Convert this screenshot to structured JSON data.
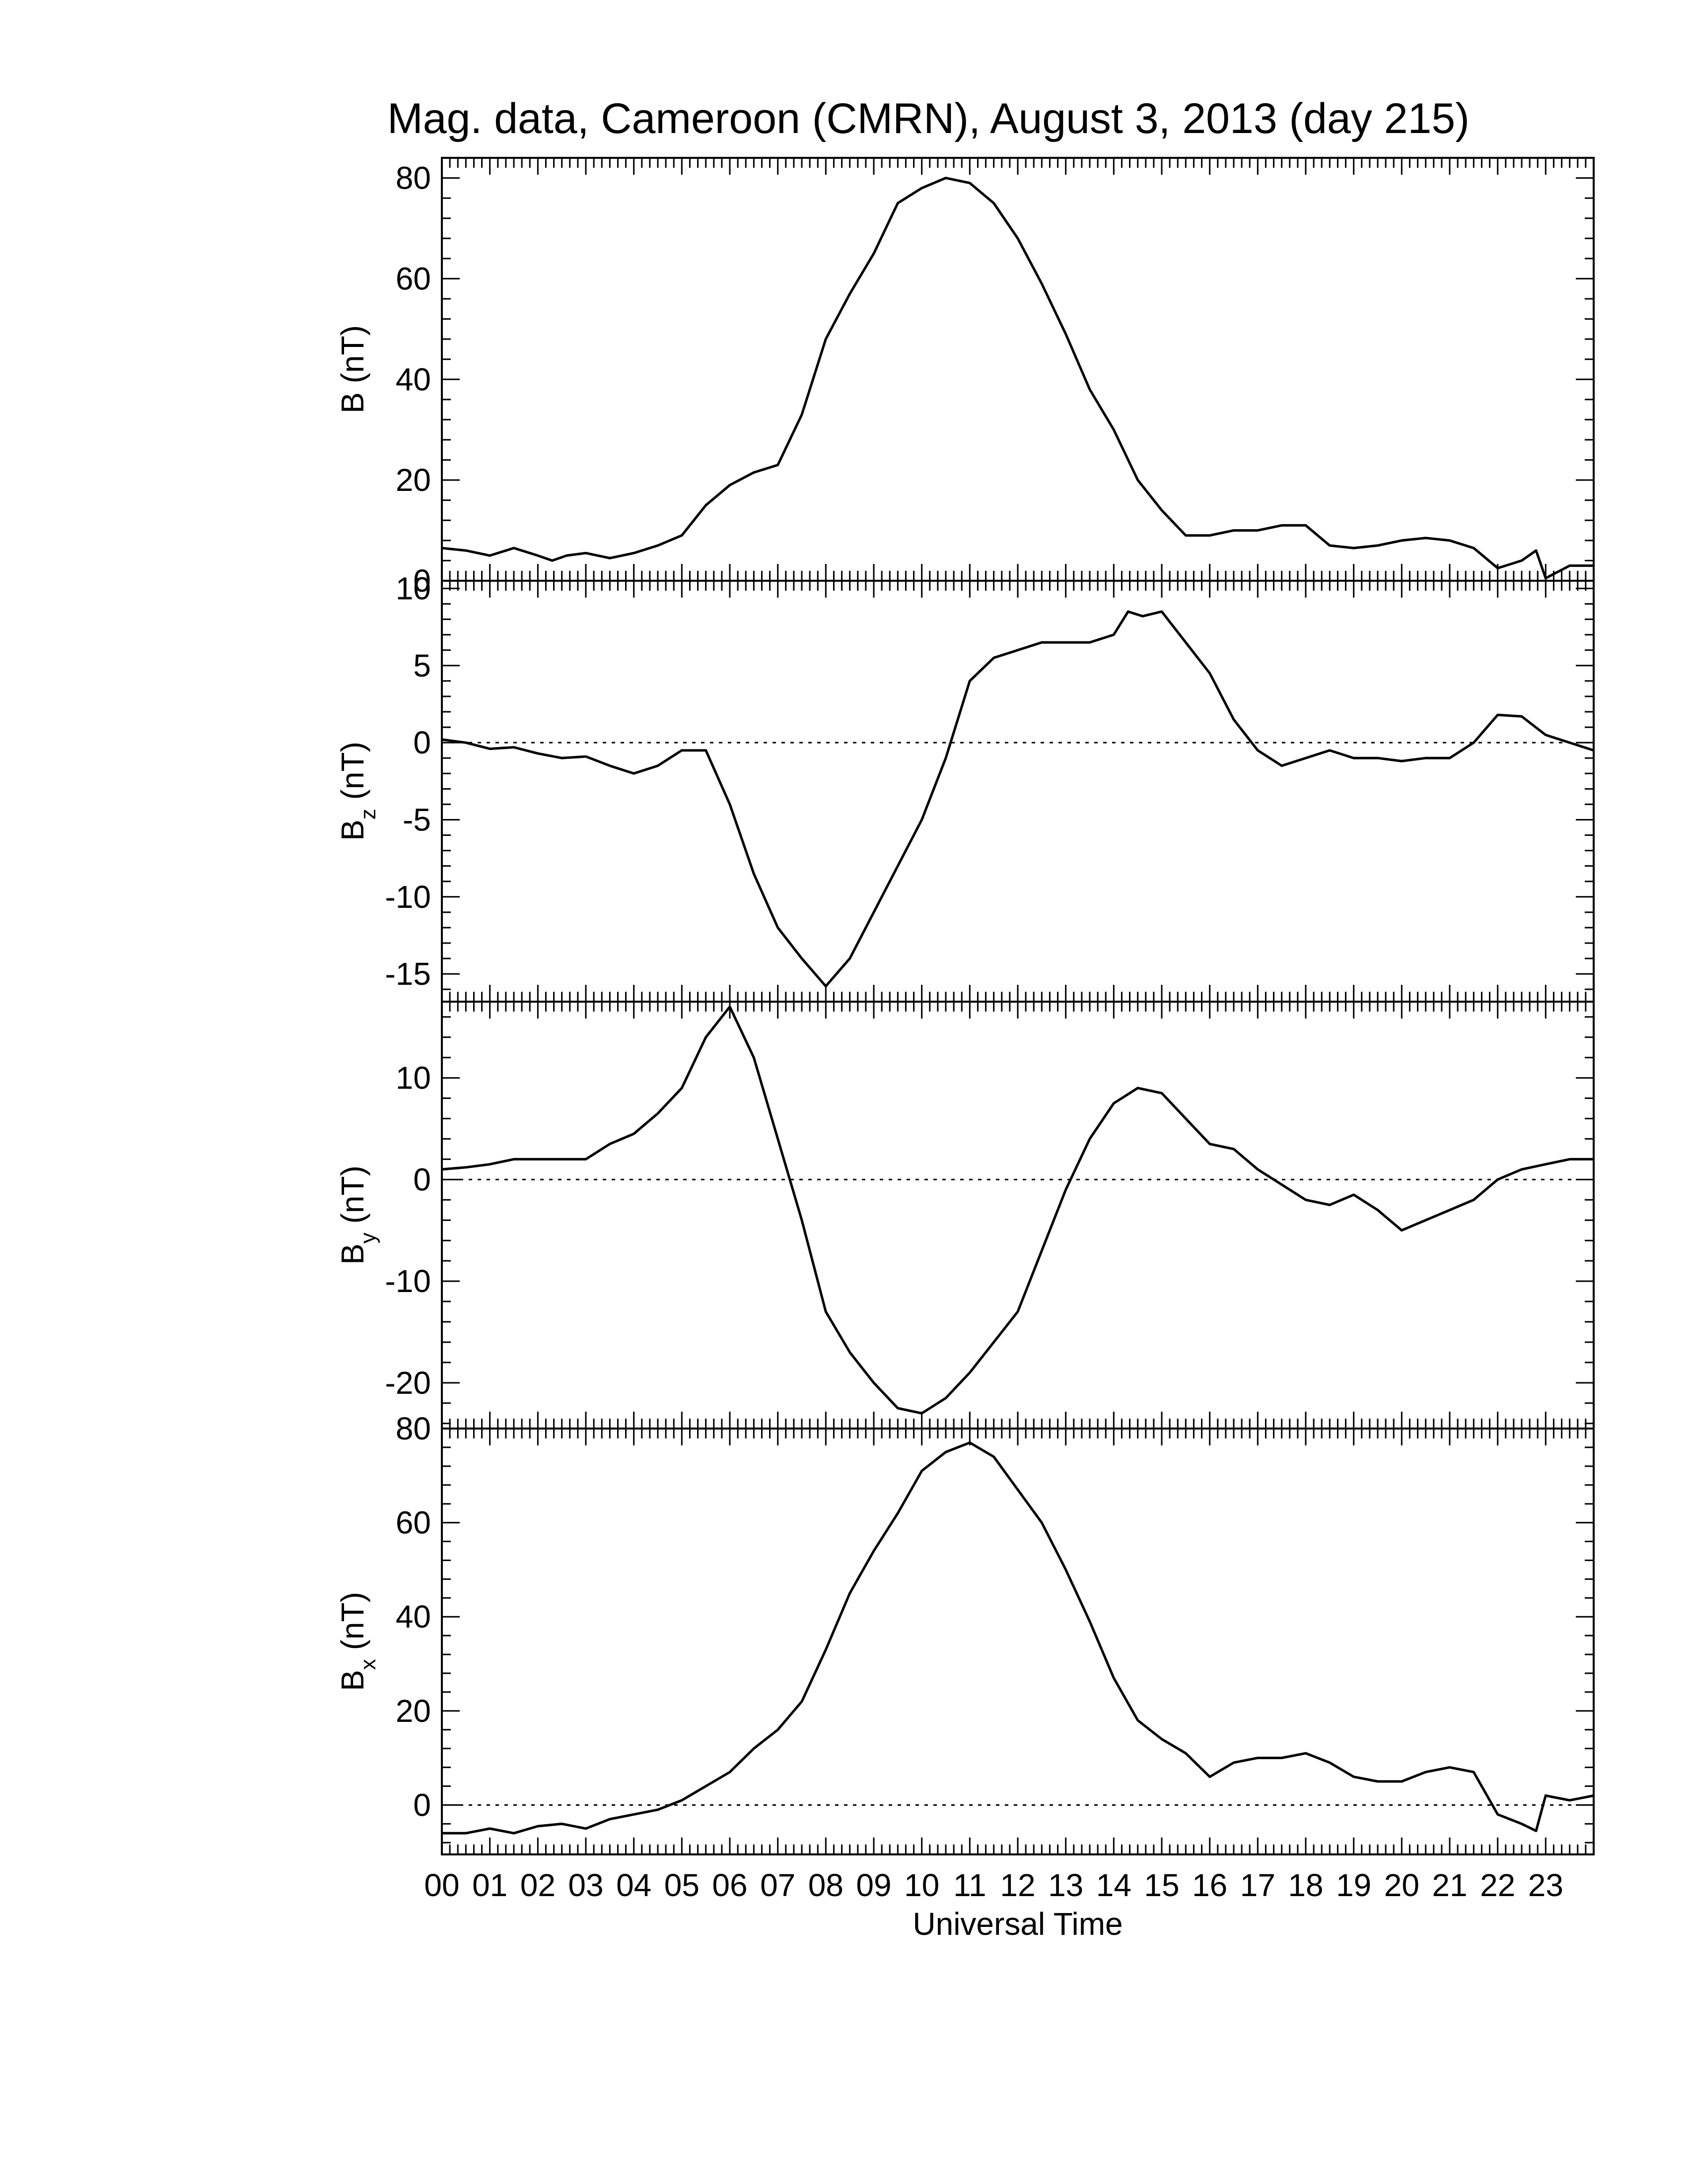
{
  "chart_data": {
    "type": "line",
    "title": "Mag. data, Cameroon (CMRN), August 3, 2013 (day 215)",
    "xlabel": "Universal Time",
    "x_tick_labels": [
      "00",
      "01",
      "02",
      "03",
      "04",
      "05",
      "06",
      "07",
      "08",
      "09",
      "10",
      "11",
      "12",
      "13",
      "14",
      "15",
      "16",
      "17",
      "18",
      "19",
      "20",
      "21",
      "22",
      "23"
    ],
    "xlim": [
      0,
      24
    ],
    "grid": false,
    "zero_line": "dotted",
    "panels": [
      {
        "ylabel_main": "B (nT)",
        "ylabel_sub": "",
        "ylim": [
          0,
          84
        ],
        "yticks": [
          0,
          20,
          40,
          60,
          80
        ],
        "x": [
          0,
          0.5,
          1,
          1.5,
          2,
          2.3,
          2.6,
          3,
          3.5,
          4,
          4.5,
          5,
          5.5,
          6,
          6.5,
          7,
          7.5,
          8,
          8.5,
          9,
          9.5,
          10,
          10.5,
          11,
          11.5,
          12,
          12.5,
          13,
          13.5,
          14,
          14.5,
          15,
          15.5,
          16,
          16.5,
          17,
          17.5,
          18,
          18.5,
          19,
          19.5,
          20,
          20.5,
          21,
          21.5,
          22,
          22.5,
          22.8,
          23,
          23.5,
          24
        ],
        "y": [
          6.5,
          6,
          5,
          6.5,
          5,
          4,
          5,
          5.5,
          4.5,
          5.5,
          7,
          9,
          15,
          19,
          21.5,
          23,
          33,
          48,
          57,
          65,
          75,
          78,
          80,
          79,
          75,
          68,
          59,
          49,
          38,
          30,
          20,
          14,
          9,
          9,
          10,
          10,
          11,
          11,
          7,
          6.5,
          7,
          8,
          8.5,
          8,
          6.5,
          2.5,
          4,
          6,
          0.5,
          3,
          3
        ]
      },
      {
        "ylabel_main": "B",
        "ylabel_sub": "z",
        "ylim": [
          -16.8,
          10.5
        ],
        "yticks": [
          -15,
          -10,
          -5,
          0,
          5,
          10
        ],
        "x": [
          0,
          0.5,
          1,
          1.5,
          2,
          2.5,
          3,
          3.5,
          4,
          4.5,
          5,
          5.5,
          6,
          6.5,
          7,
          7.5,
          8,
          8.5,
          9,
          9.5,
          10,
          10.5,
          11,
          11.5,
          12,
          12.5,
          13,
          13.5,
          14,
          14.3,
          14.6,
          15,
          15.5,
          16,
          16.5,
          17,
          17.5,
          18,
          18.5,
          19,
          19.5,
          20,
          20.5,
          21,
          21.5,
          22,
          22.5,
          23,
          23.5,
          24
        ],
        "y": [
          0.2,
          0,
          -0.4,
          -0.3,
          -0.7,
          -1,
          -0.9,
          -1.5,
          -2,
          -1.5,
          -0.5,
          -0.5,
          -4,
          -8.5,
          -12,
          -14,
          -15.8,
          -14,
          -11,
          -8,
          -5,
          -1,
          4,
          5.5,
          6,
          6.5,
          6.5,
          6.5,
          7,
          8.5,
          8.2,
          8.5,
          6.5,
          4.5,
          1.5,
          -0.5,
          -1.5,
          -1,
          -0.5,
          -1,
          -1,
          -1.2,
          -1,
          -1,
          0,
          1.8,
          1.7,
          0.5,
          0,
          -0.5
        ]
      },
      {
        "ylabel_main": "B",
        "ylabel_sub": "y",
        "ylim": [
          -24.5,
          17.5
        ],
        "yticks": [
          -20,
          -10,
          0,
          10
        ],
        "x": [
          0,
          0.5,
          1,
          1.5,
          2,
          2.5,
          3,
          3.5,
          4,
          4.5,
          5,
          5.5,
          6,
          6.5,
          7,
          7.5,
          8,
          8.5,
          9,
          9.5,
          10,
          10.5,
          11,
          11.5,
          12,
          12.5,
          13,
          13.5,
          14,
          14.5,
          15,
          15.5,
          16,
          16.5,
          17,
          17.5,
          18,
          18.5,
          19,
          19.5,
          20,
          20.5,
          21,
          21.5,
          22,
          22.5,
          23,
          23.5,
          24
        ],
        "y": [
          1,
          1.2,
          1.5,
          2,
          2,
          2,
          2,
          3.5,
          4.5,
          6.5,
          9,
          14,
          17,
          12,
          4,
          -4,
          -13,
          -17,
          -20,
          -22.5,
          -23,
          -21.5,
          -19,
          -16,
          -13,
          -7,
          -1,
          4,
          7.5,
          9,
          8.5,
          6,
          3.5,
          3,
          1,
          -0.5,
          -2,
          -2.5,
          -1.5,
          -3,
          -5,
          -4,
          -3,
          -2,
          0,
          1,
          1.5,
          2,
          2
        ]
      },
      {
        "ylabel_main": "B",
        "ylabel_sub": "x",
        "ylim": [
          -10.5,
          80
        ],
        "yticks": [
          0,
          20,
          40,
          60,
          80
        ],
        "x": [
          0,
          0.5,
          1,
          1.5,
          2,
          2.5,
          3,
          3.5,
          4,
          4.5,
          5,
          5.5,
          6,
          6.5,
          7,
          7.5,
          8,
          8.5,
          9,
          9.5,
          10,
          10.5,
          11,
          11.5,
          12,
          12.5,
          13,
          13.5,
          14,
          14.5,
          15,
          15.5,
          16,
          16.5,
          17,
          17.5,
          18,
          18.5,
          19,
          19.5,
          20,
          20.5,
          21,
          21.5,
          22,
          22.5,
          22.8,
          23,
          23.5,
          24
        ],
        "y": [
          -6,
          -6,
          -5,
          -6,
          -4.5,
          -4,
          -5,
          -3,
          -2,
          -1,
          1,
          4,
          7,
          12,
          16,
          22,
          33,
          45,
          54,
          62,
          71,
          75,
          77,
          74,
          67,
          60,
          50,
          39,
          27,
          18,
          14,
          11,
          6,
          9,
          10,
          10,
          11,
          9,
          6,
          5,
          5,
          7,
          8,
          7,
          -2,
          -4,
          -5.5,
          2,
          1,
          2
        ]
      }
    ]
  }
}
